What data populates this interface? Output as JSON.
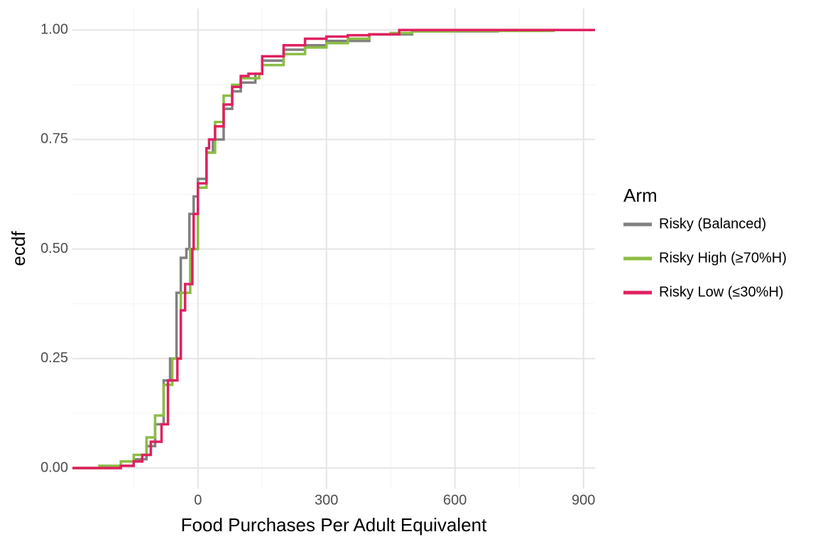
{
  "chart_data": {
    "type": "ecdf",
    "x_label": "Food Purchases Per Adult Equivalent",
    "y_label": "ecdf",
    "legend_title": "Arm",
    "legend_position": "right",
    "grid": true,
    "xlim": [
      -293,
      927
    ],
    "ylim": [
      -0.047,
      1.049
    ],
    "xticks": [
      0,
      300,
      600,
      900
    ],
    "yticks": [
      {
        "value": 0,
        "label": "0.00"
      },
      {
        "value": 0.25,
        "label": "0.25"
      },
      {
        "value": 0.5,
        "label": "0.50"
      },
      {
        "value": 0.75,
        "label": "0.75"
      },
      {
        "value": 1,
        "label": "1.00"
      }
    ],
    "xminor": [
      -150,
      150,
      450,
      750
    ],
    "yminor": [
      0.125,
      0.375,
      0.625,
      0.875
    ],
    "series": [
      {
        "name": "Risky (Balanced)",
        "color": "#808080",
        "x": [
          -293,
          -180,
          -150,
          -120,
          -100,
          -80,
          -65,
          -50,
          -40,
          -27,
          -20,
          -10,
          0,
          20,
          35,
          60,
          80,
          100,
          134,
          150,
          200,
          250,
          300,
          400,
          500,
          700,
          927
        ],
        "values": [
          0,
          0.005,
          0.02,
          0.05,
          0.1,
          0.2,
          0.25,
          0.4,
          0.48,
          0.5,
          0.58,
          0.62,
          0.66,
          0.72,
          0.75,
          0.82,
          0.86,
          0.88,
          0.9,
          0.93,
          0.955,
          0.965,
          0.975,
          0.99,
          0.997,
          1,
          1
        ]
      },
      {
        "name": "Risky High (≥70%H)",
        "color": "#8bbd45",
        "x": [
          -293,
          -230,
          -180,
          -150,
          -120,
          -100,
          -80,
          -60,
          -40,
          -18,
          0,
          20,
          40,
          60,
          80,
          100,
          143,
          150,
          200,
          250,
          300,
          350,
          400,
          450,
          500,
          600,
          830,
          927
        ],
        "values": [
          0,
          0.005,
          0.015,
          0.03,
          0.07,
          0.12,
          0.19,
          0.25,
          0.4,
          0.5,
          0.64,
          0.72,
          0.79,
          0.85,
          0.875,
          0.89,
          0.9,
          0.92,
          0.945,
          0.96,
          0.97,
          0.98,
          0.99,
          0.993,
          0.997,
          0.998,
          1,
          1
        ]
      },
      {
        "name": "Risky Low (≤30%H)",
        "color": "#e0205f",
        "x": [
          -293,
          -180,
          -150,
          -130,
          -110,
          -85,
          -70,
          -48,
          -40,
          -30,
          -13,
          -10,
          0,
          20,
          26,
          40,
          60,
          80,
          100,
          118,
          150,
          200,
          250,
          300,
          350,
          400,
          470,
          927
        ],
        "values": [
          0,
          0.005,
          0.015,
          0.03,
          0.06,
          0.1,
          0.2,
          0.25,
          0.36,
          0.42,
          0.5,
          0.58,
          0.65,
          0.73,
          0.75,
          0.78,
          0.83,
          0.87,
          0.895,
          0.9,
          0.94,
          0.965,
          0.98,
          0.985,
          0.988,
          0.99,
          1,
          1
        ]
      }
    ]
  }
}
